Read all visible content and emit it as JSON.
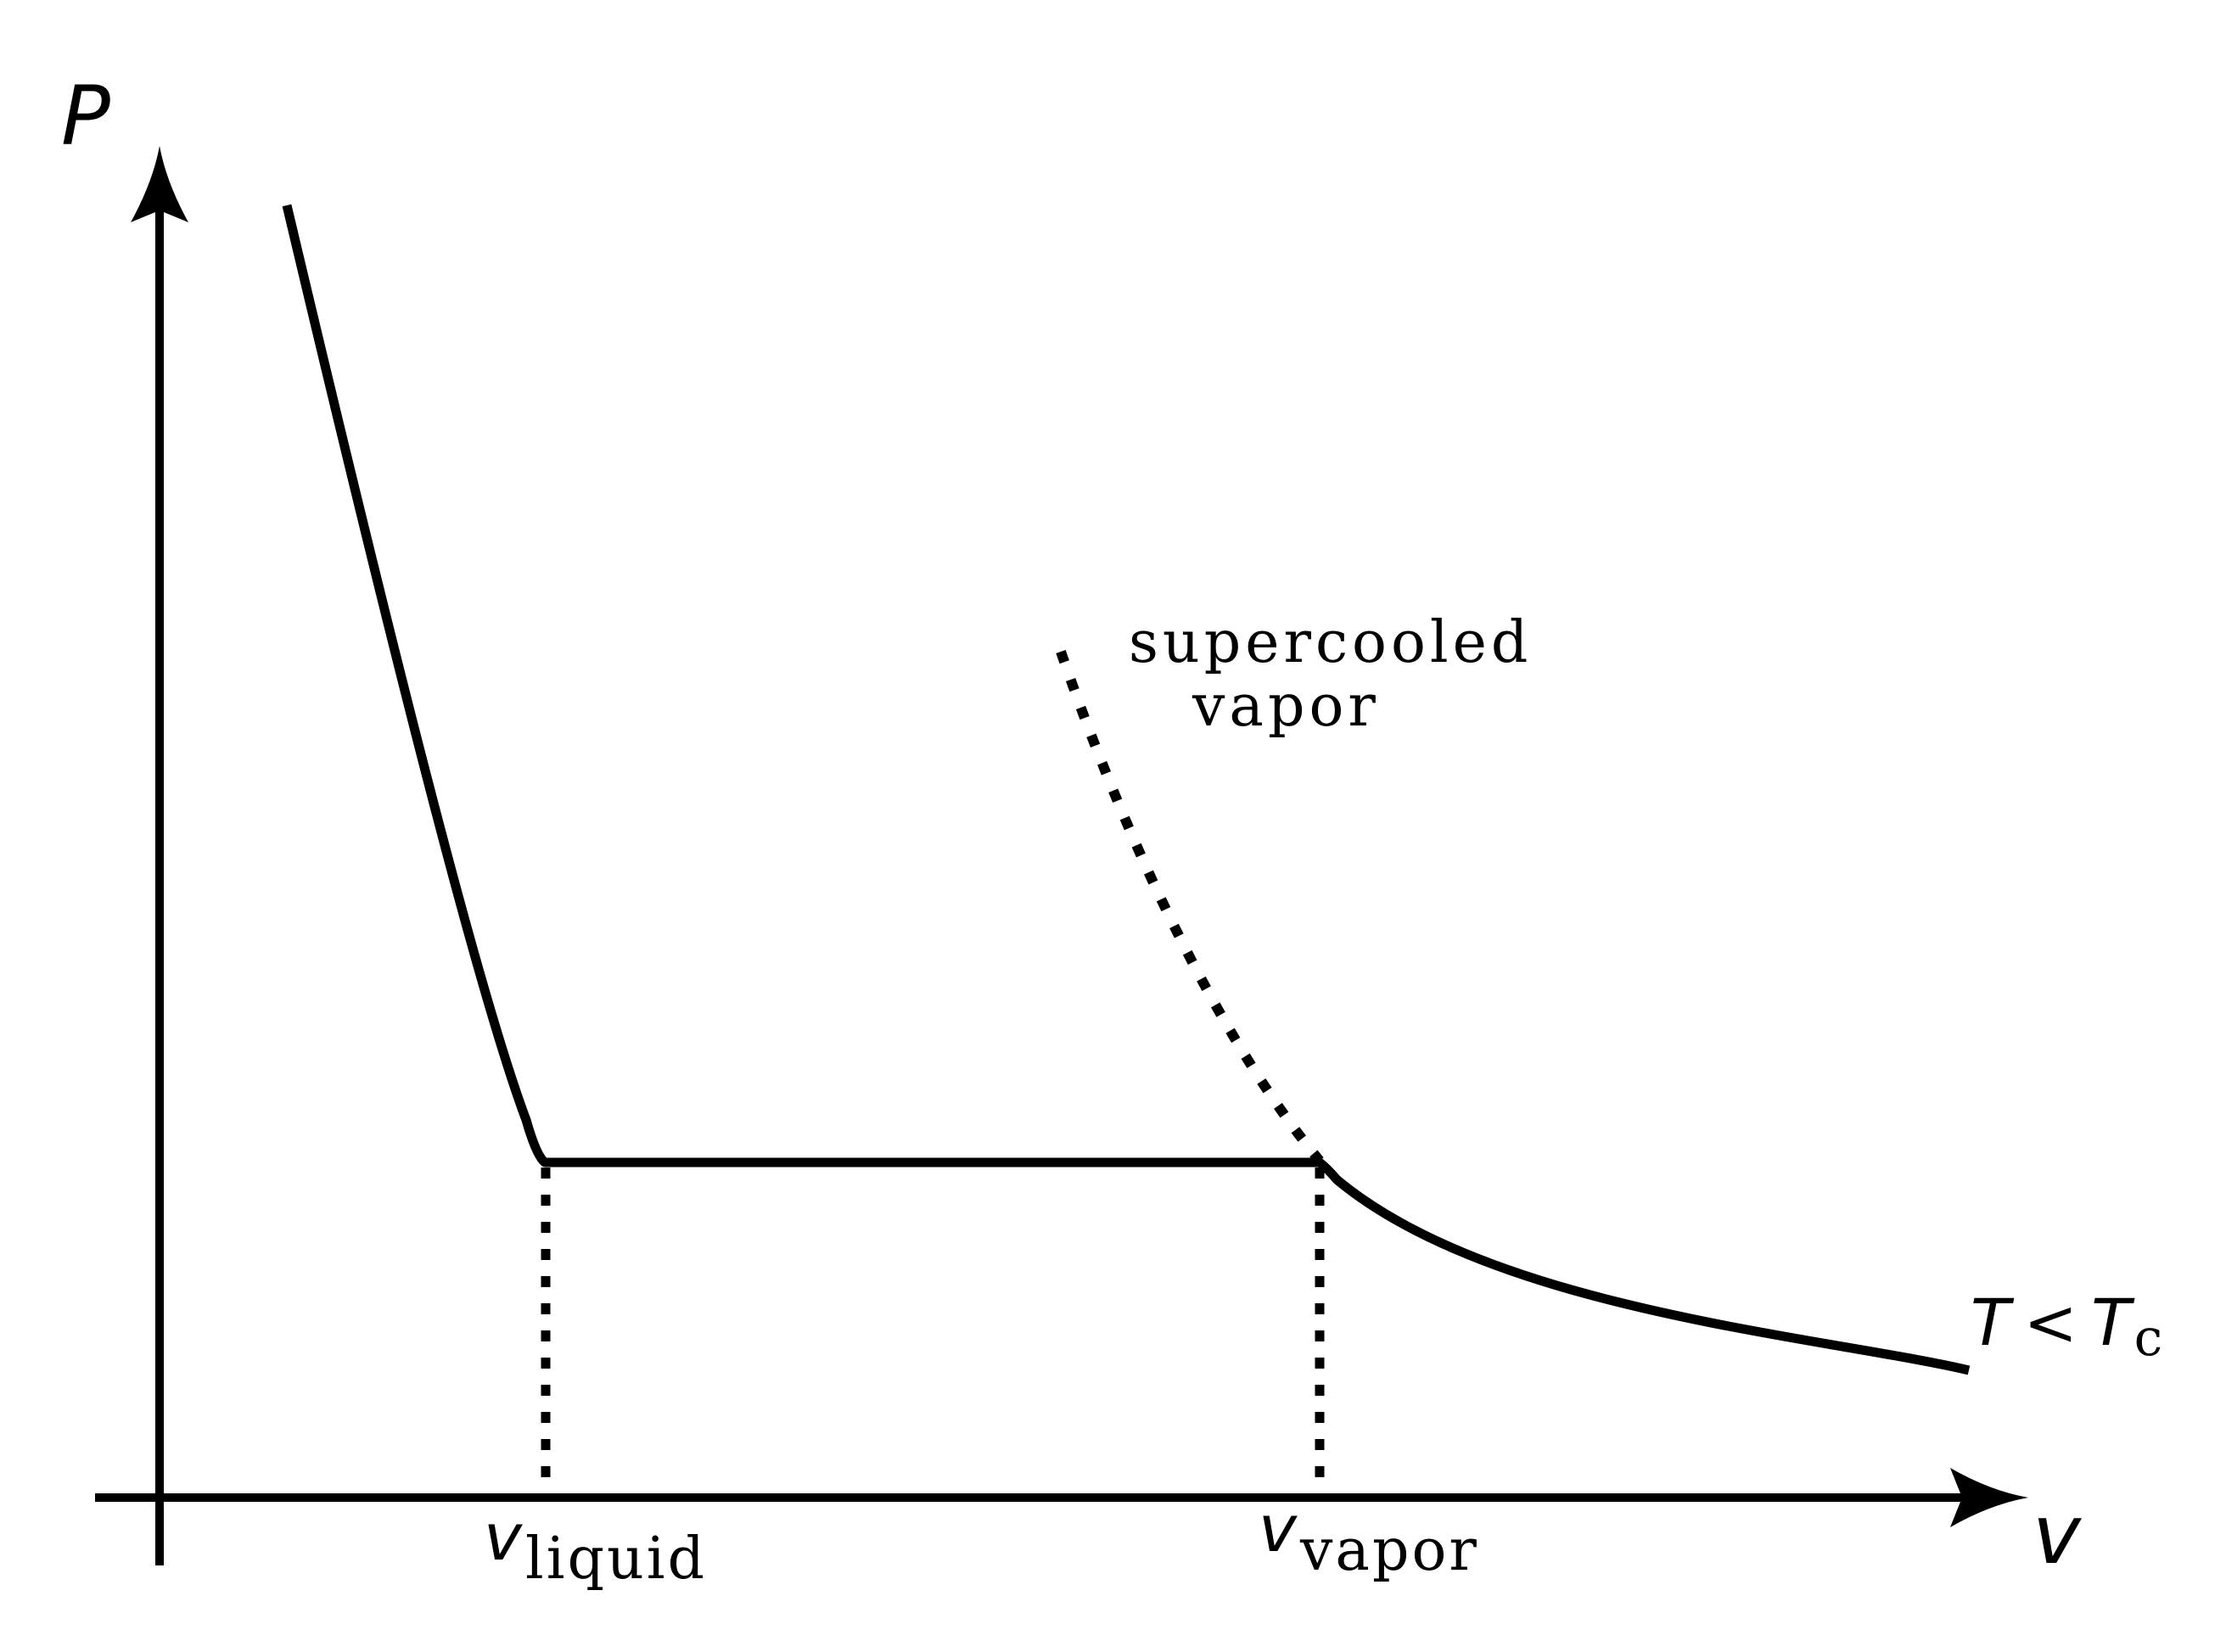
{
  "axes": {
    "y_label": "P",
    "x_label": "v"
  },
  "isotherm_label": {
    "T": "T",
    "lt": "<",
    "Tc_base": "T",
    "Tc_sub": "c"
  },
  "annotation": {
    "line1": "supercooled",
    "line2": "vapor"
  },
  "x_ticks": {
    "liquid": {
      "base": "v",
      "sub": "liquid"
    },
    "vapor": {
      "base": "v",
      "sub": "vapor"
    }
  },
  "colors": {
    "ink": "#000000",
    "background": "#ffffff"
  }
}
